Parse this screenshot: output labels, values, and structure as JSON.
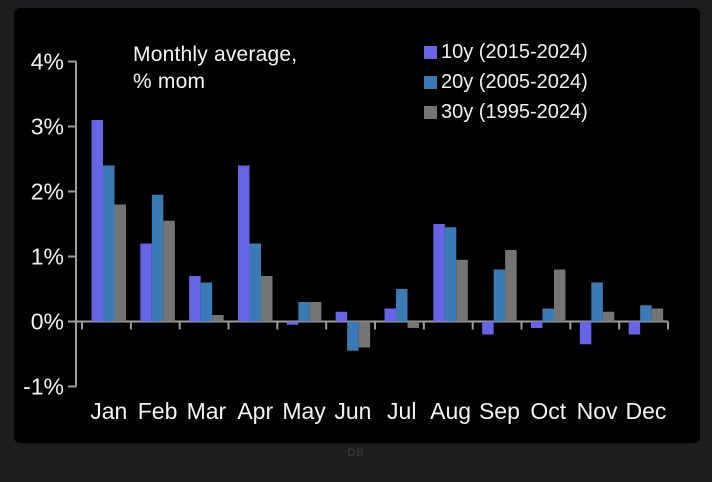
{
  "window": {
    "background": "#1d1d1f",
    "panel_background": "#000000",
    "watermark": "DB"
  },
  "header": {
    "title_line1": "Monthly average,",
    "title_line2": "% mom"
  },
  "legend": {
    "items": [
      {
        "label": "10y (2015-2024)",
        "color": "#6565e6"
      },
      {
        "label": "20y (2005-2024)",
        "color": "#3a7ab5"
      },
      {
        "label": "30y (1995-2024)",
        "color": "#747474"
      }
    ]
  },
  "chart_data": {
    "type": "bar",
    "title": "Monthly average, % mom",
    "categories": [
      "Jan",
      "Feb",
      "Mar",
      "Apr",
      "May",
      "Jun",
      "Jul",
      "Aug",
      "Sep",
      "Oct",
      "Nov",
      "Dec"
    ],
    "series": [
      {
        "name": "10y (2015-2024)",
        "color": "#6565e6",
        "values": [
          3.1,
          1.2,
          0.7,
          2.4,
          -0.05,
          0.15,
          0.2,
          1.5,
          -0.2,
          -0.1,
          -0.35,
          -0.2
        ]
      },
      {
        "name": "20y (2005-2024)",
        "color": "#3a7ab5",
        "values": [
          2.4,
          1.95,
          0.6,
          1.2,
          0.3,
          -0.45,
          0.5,
          1.45,
          0.8,
          0.2,
          0.6,
          0.25
        ]
      },
      {
        "name": "30y (1995-2024)",
        "color": "#747474",
        "values": [
          1.8,
          1.55,
          0.1,
          0.7,
          0.3,
          -0.4,
          -0.1,
          0.95,
          1.1,
          0.8,
          0.15,
          0.2
        ]
      }
    ],
    "xlabel": "",
    "ylabel": "",
    "ylim": [
      -1,
      4
    ],
    "y_ticks": [
      4,
      3,
      2,
      1,
      0,
      -1
    ],
    "y_tick_suffix": "%",
    "grid": false,
    "legend_position": "top-right",
    "axis_color": "#9c9c9c",
    "text_color": "#f2f2f2",
    "background": "#000000"
  }
}
